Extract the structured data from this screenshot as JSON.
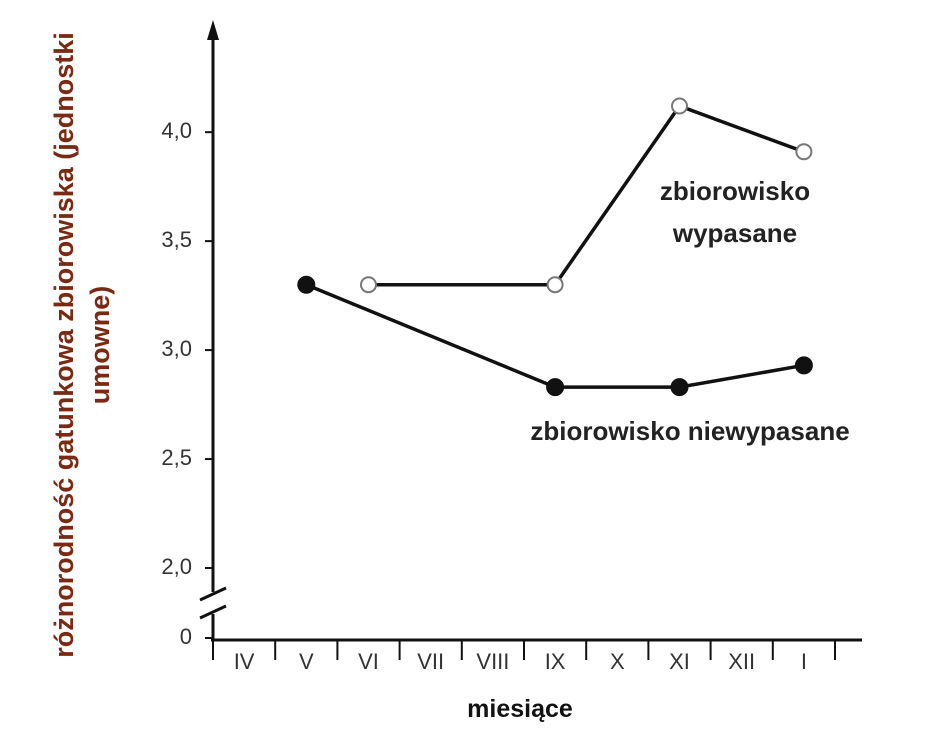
{
  "chart_data": {
    "type": "line",
    "ylabel": "różnorodność gatunkowa zbiorowiska (jednostki umowne)",
    "xlabel": "miesiące",
    "categories": [
      "IV",
      "V",
      "VI",
      "VII",
      "VIII",
      "IX",
      "X",
      "XI",
      "XII",
      "I"
    ],
    "ylim": [
      2,
      4.4
    ],
    "axis_break": true,
    "yticks": [
      0,
      {
        "value": 2,
        "label": "2,0"
      },
      {
        "value": 2.5,
        "label": "2,5"
      },
      {
        "value": 3,
        "label": "3,0"
      },
      {
        "value": 3.5,
        "label": "3,5"
      },
      {
        "value": 4,
        "label": "4,0"
      }
    ],
    "series": [
      {
        "name": "zbiorowisko niewypasane",
        "color": "#111111",
        "marker": "filled",
        "x": [
          "V",
          "IX",
          "XI",
          "I"
        ],
        "values": [
          3.3,
          2.83,
          2.83,
          2.93
        ]
      },
      {
        "name": "zbiorowisko wypasane",
        "color": "#111111",
        "marker": "open",
        "x": [
          "VI",
          "IX",
          "XI",
          "I"
        ],
        "values": [
          3.3,
          3.3,
          4.12,
          3.91
        ]
      }
    ]
  }
}
